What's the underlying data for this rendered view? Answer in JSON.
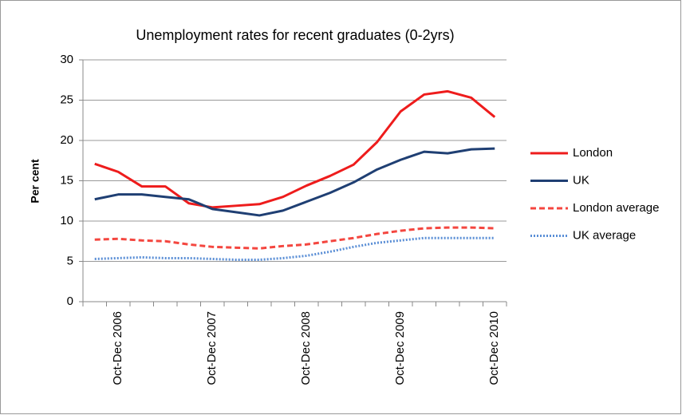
{
  "chart_data": {
    "type": "line",
    "title": "Unemployment  rates for recent graduates (0-2yrs)",
    "y_label": "Per cent",
    "categories": [
      null,
      "Oct-Dec 2006",
      null,
      null,
      null,
      "Oct-Dec 2007",
      null,
      null,
      null,
      "Oct-Dec 2008",
      null,
      null,
      null,
      "Oct-Dec 2009",
      null,
      null,
      null,
      "Oct-Dec 2010"
    ],
    "series": [
      {
        "name": "London",
        "color": "#ee1c1c",
        "style": "solid",
        "values": [
          17.1,
          16.1,
          14.3,
          14.3,
          12.2,
          11.7,
          11.9,
          12.1,
          13.0,
          14.4,
          15.6,
          17.0,
          19.8,
          23.6,
          25.7,
          26.1,
          25.3,
          22.9
        ]
      },
      {
        "name": "UK",
        "color": "#1f3f73",
        "style": "solid",
        "values": [
          12.7,
          13.3,
          13.3,
          13.0,
          12.7,
          11.5,
          11.1,
          10.7,
          11.3,
          12.4,
          13.5,
          14.8,
          16.4,
          17.6,
          18.6,
          18.4,
          18.9,
          19.0
        ]
      },
      {
        "name": "London average",
        "color": "#f4463f",
        "style": "dashed",
        "values": [
          7.7,
          7.8,
          7.6,
          7.5,
          7.1,
          6.8,
          6.7,
          6.6,
          6.9,
          7.1,
          7.5,
          7.9,
          8.4,
          8.8,
          9.1,
          9.2,
          9.2,
          9.1
        ]
      },
      {
        "name": "UK average",
        "color": "#5b8fd6",
        "style": "dotted",
        "values": [
          5.3,
          5.4,
          5.5,
          5.4,
          5.4,
          5.3,
          5.2,
          5.2,
          5.4,
          5.7,
          6.2,
          6.8,
          7.3,
          7.6,
          7.9,
          7.9,
          7.9,
          7.9
        ]
      }
    ],
    "ylim": [
      0,
      30
    ],
    "yticks": [
      0,
      5,
      10,
      15,
      20,
      25,
      30
    ],
    "grid": true,
    "legend": "right"
  }
}
